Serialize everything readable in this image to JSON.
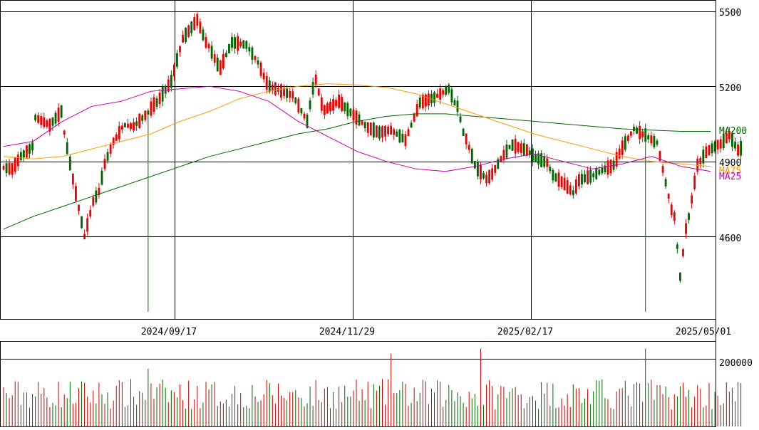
{
  "chart_data": {
    "type": "candlestick",
    "colors": {
      "up": "#ee0000",
      "down": "#006600",
      "ma25": "#cc00aa",
      "ma75": "#ff9900",
      "ma200": "#006600",
      "grid": "#000000",
      "volume_up": "#cc0000",
      "volume_down": "#006600"
    },
    "price_axis": {
      "ticks": [
        "5500",
        "5200",
        "4900",
        "4600"
      ],
      "tick_values": [
        5500,
        5200,
        4900,
        4600
      ],
      "ylim": [
        4280,
        5530
      ]
    },
    "date_axis": {
      "ticks": [
        "2024/09/17",
        "2024/11/29",
        "2025/02/17",
        "2025/05/01"
      ]
    },
    "volume_axis": {
      "ticks": [
        "200000"
      ],
      "tick_values": [
        200000
      ],
      "ylim": [
        0,
        250000
      ]
    },
    "ma_labels": {
      "ma200": "MA200",
      "ma75": "MA75",
      "ma25": "MA25"
    },
    "anchors": [
      [
        0,
        4850,
        4900
      ],
      [
        5,
        4860,
        4880
      ],
      [
        12,
        4900,
        4960
      ],
      [
        18,
        4920,
        5000
      ],
      [
        20,
        5050,
        5100
      ],
      [
        30,
        5010,
        5080
      ],
      [
        38,
        5070,
        5130
      ],
      [
        40,
        4980,
        5050
      ],
      [
        46,
        4820,
        4840
      ],
      [
        54,
        4580,
        4620
      ],
      [
        60,
        4720,
        4760
      ],
      [
        64,
        4760,
        4800
      ],
      [
        68,
        4880,
        4900
      ],
      [
        75,
        4990,
        5000
      ],
      [
        80,
        5040,
        5050
      ],
      [
        85,
        5030,
        5050
      ],
      [
        95,
        5090,
        5100
      ],
      [
        100,
        5140,
        5130
      ],
      [
        110,
        5220,
        5220
      ],
      [
        118,
        5400,
        5380
      ],
      [
        128,
        5430,
        5500
      ],
      [
        135,
        5340,
        5380
      ],
      [
        142,
        5250,
        5300
      ],
      [
        150,
        5350,
        5400
      ],
      [
        160,
        5360,
        5370
      ],
      [
        168,
        5290,
        5300
      ],
      [
        175,
        5200,
        5200
      ],
      [
        190,
        5160,
        5170
      ],
      [
        200,
        5050,
        5070
      ],
      [
        205,
        5220,
        5230
      ],
      [
        210,
        5100,
        5110
      ],
      [
        220,
        5140,
        5140
      ],
      [
        230,
        5080,
        5090
      ],
      [
        240,
        5030,
        5040
      ],
      [
        248,
        5010,
        5020
      ],
      [
        255,
        5020,
        5030
      ],
      [
        265,
        4980,
        4990
      ],
      [
        275,
        5130,
        5140
      ],
      [
        285,
        5150,
        5160
      ],
      [
        295,
        5180,
        5200
      ],
      [
        300,
        5120,
        5120
      ],
      [
        305,
        4980,
        5000
      ],
      [
        312,
        4860,
        4880
      ],
      [
        318,
        4820,
        4840
      ],
      [
        322,
        4840,
        4860
      ],
      [
        328,
        4900,
        4920
      ],
      [
        335,
        4960,
        4970
      ],
      [
        345,
        4940,
        4950
      ],
      [
        352,
        4900,
        4920
      ],
      [
        358,
        4890,
        4900
      ],
      [
        362,
        4840,
        4850
      ],
      [
        370,
        4800,
        4820
      ],
      [
        376,
        4770,
        4780
      ],
      [
        380,
        4820,
        4830
      ],
      [
        390,
        4840,
        4850
      ],
      [
        398,
        4860,
        4880
      ],
      [
        404,
        4880,
        4890
      ],
      [
        410,
        4950,
        4960
      ],
      [
        418,
        5020,
        5040
      ],
      [
        425,
        5000,
        5010
      ],
      [
        432,
        4960,
        4990
      ],
      [
        438,
        4790,
        4840
      ],
      [
        443,
        4660,
        4700
      ],
      [
        447,
        4400,
        4480
      ],
      [
        452,
        4660,
        4700
      ],
      [
        458,
        4870,
        4900
      ],
      [
        465,
        4940,
        4950
      ],
      [
        472,
        4960,
        4980
      ],
      [
        478,
        4990,
        5020
      ],
      [
        484,
        4940,
        4950
      ],
      [
        488,
        4960,
        4960
      ]
    ],
    "ma25": [
      4960,
      4980,
      5060,
      5120,
      5140,
      5180,
      5190,
      5200,
      5180,
      5140,
      5060,
      5000,
      4940,
      4900,
      4870,
      4860,
      4880,
      4910,
      4930,
      4900,
      4870,
      4890,
      4920,
      4880,
      4860
    ],
    "ma75": [
      4920,
      4910,
      4920,
      4950,
      4980,
      5010,
      5060,
      5100,
      5150,
      5180,
      5200,
      5210,
      5205,
      5195,
      5170,
      5130,
      5090,
      5050,
      5010,
      4980,
      4950,
      4920,
      4900,
      4890,
      4880
    ],
    "ma200": [
      4630,
      4680,
      4720,
      4760,
      4800,
      4840,
      4880,
      4920,
      4950,
      4980,
      5010,
      5030,
      5060,
      5080,
      5090,
      5090,
      5080,
      5070,
      5060,
      5050,
      5040,
      5030,
      5025,
      5020,
      5020
    ]
  }
}
